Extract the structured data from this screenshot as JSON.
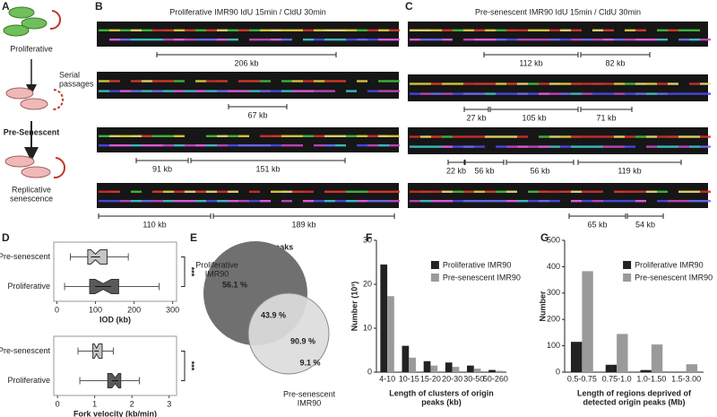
{
  "panel_labels": [
    "A",
    "B",
    "C",
    "D",
    "E",
    "F",
    "G"
  ],
  "panel_a": {
    "labels": [
      [
        "Proliferative"
      ],
      [
        "Serial",
        "passages"
      ],
      [
        "Pre-Senescent"
      ],
      [
        "Replicative",
        "senescence"
      ]
    ]
  },
  "panel_b": {
    "title": "Proliferative  IMR90 IdU 15min / CldU 30min",
    "rows": [
      [
        "206 kb"
      ],
      [
        "67 kb"
      ],
      [
        "91 kb",
        "151 kb"
      ],
      [
        "110 kb",
        "189 kb"
      ]
    ]
  },
  "panel_c": {
    "title": "Pre-senescent  IMR90 IdU 15min / CldU 30min",
    "rows": [
      [
        "112 kb",
        "82 kb"
      ],
      [
        "27 kb",
        "105 kb",
        "71 kb"
      ],
      [
        "22 kb",
        "56 kb",
        "56 kb",
        "119 kb"
      ],
      [
        "65 kb",
        "54 kb"
      ]
    ]
  },
  "chart_data": [
    {
      "type": "box",
      "categories": [
        "Pre-senescent",
        "Proliferative"
      ],
      "colors": [
        "#c4c4c4",
        "#5a5a5a"
      ],
      "whislo": [
        35,
        20
      ],
      "q1": [
        80,
        85
      ],
      "med": [
        100,
        120
      ],
      "q3": [
        130,
        160
      ],
      "whishi": [
        185,
        265
      ],
      "xlim": [
        -8,
        310
      ],
      "xticks": [
        0,
        100,
        200,
        300
      ],
      "xlabel": "IOD (kb)",
      "annotation": "***"
    },
    {
      "type": "box",
      "categories": [
        "Pre-senescent",
        "Proliferative"
      ],
      "colors": [
        "#c4c4c4",
        "#5a5a5a"
      ],
      "whislo": [
        0.55,
        0.6
      ],
      "q1": [
        0.95,
        1.35
      ],
      "med": [
        1.05,
        1.55
      ],
      "q3": [
        1.2,
        1.7
      ],
      "whishi": [
        1.5,
        2.2
      ],
      "xlim": [
        -0.1,
        3.2
      ],
      "xticks": [
        0,
        1,
        2,
        3
      ],
      "xlabel": "Fork velocity  (kb/min)",
      "annotation": "***"
    },
    {
      "type": "venn",
      "title": "Origin peaks",
      "sets": [
        [
          "Proliferative",
          "IMR90"
        ],
        [
          "Pre-senescent",
          "IMR90"
        ]
      ],
      "colors": [
        "#707070",
        "#dcdcdc"
      ],
      "labels": [
        "56.1 %",
        "43.9 %",
        "90.9 %",
        "9.1 %"
      ]
    },
    {
      "type": "bar",
      "categories": [
        "4-10",
        "10-15",
        "15-20",
        "20-30",
        "30-50",
        "50-260"
      ],
      "series": [
        {
          "name": "Proliferative  IMR90",
          "color": "#222222",
          "values": [
            24.5,
            6,
            2.5,
            2.2,
            1.5,
            0.5
          ]
        },
        {
          "name": "Pre-senescent IMR90",
          "color": "#9a9a9a",
          "values": [
            17.3,
            3.3,
            1.5,
            1.2,
            0.8,
            0.3
          ]
        }
      ],
      "ylim": [
        0,
        30
      ],
      "yticks": [
        0,
        10,
        20,
        30
      ],
      "ylabel": "Number (10³)",
      "xlabel": [
        "Length of clusters of origin",
        "peaks (kb)"
      ]
    },
    {
      "type": "bar",
      "categories": [
        "0.5-0.75",
        "0.75-1.0",
        "1.0-1.50",
        "1.5-3.00"
      ],
      "series": [
        {
          "name": "Proliferative  IMR90",
          "color": "#222222",
          "values": [
            115,
            28,
            8,
            0
          ]
        },
        {
          "name": "Pre-senescent IMR90",
          "color": "#9a9a9a",
          "values": [
            383,
            145,
            105,
            30
          ]
        }
      ],
      "ylim": [
        0,
        500
      ],
      "yticks": [
        0,
        100,
        200,
        300,
        400,
        500
      ],
      "ylabel": "Number",
      "xlabel": [
        "Length of regions deprived of",
        "detected origin peaks (Mb)"
      ]
    }
  ]
}
